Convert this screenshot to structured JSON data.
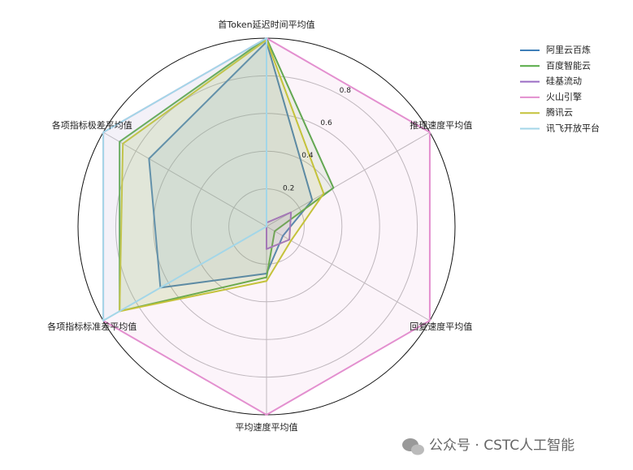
{
  "chart_data": {
    "type": "radar",
    "categories": [
      "首Token延迟时间平均值",
      "推理速度平均值",
      "回复速度平均值",
      "平均速度平均值",
      "各项指标标准差平均值",
      "各项指标极差平均值"
    ],
    "series": [
      {
        "name": "阿里云百炼",
        "color": "#3f7fb8",
        "values": [
          0.98,
          0.28,
          0.1,
          0.25,
          0.65,
          0.72
        ]
      },
      {
        "name": "百度智能云",
        "color": "#55aa44",
        "values": [
          1,
          0.41,
          0.05,
          0.27,
          0.9,
          0.9
        ]
      },
      {
        "name": "硅基流动",
        "color": "#9a6cc4",
        "values": [
          0.02,
          0.15,
          0.14,
          0.12,
          0,
          0
        ]
      },
      {
        "name": "火山引擎",
        "color": "#e38fcf",
        "values": [
          1,
          1,
          1,
          1,
          1,
          1
        ]
      },
      {
        "name": "腾讯云",
        "color": "#c4c23a",
        "values": [
          0.99,
          0.35,
          0.15,
          0.29,
          0.9,
          0.88
        ]
      },
      {
        "name": "讯飞开放平台",
        "color": "#a3d6e8",
        "values": [
          1,
          0,
          0,
          0,
          1,
          1
        ]
      }
    ],
    "ylim": [
      0,
      1
    ],
    "yticks": [
      0.2,
      0.4,
      0.6,
      0.8
    ],
    "grid": true,
    "legend": "upper right",
    "watermark": "公众号 · CSTC人工智能"
  }
}
